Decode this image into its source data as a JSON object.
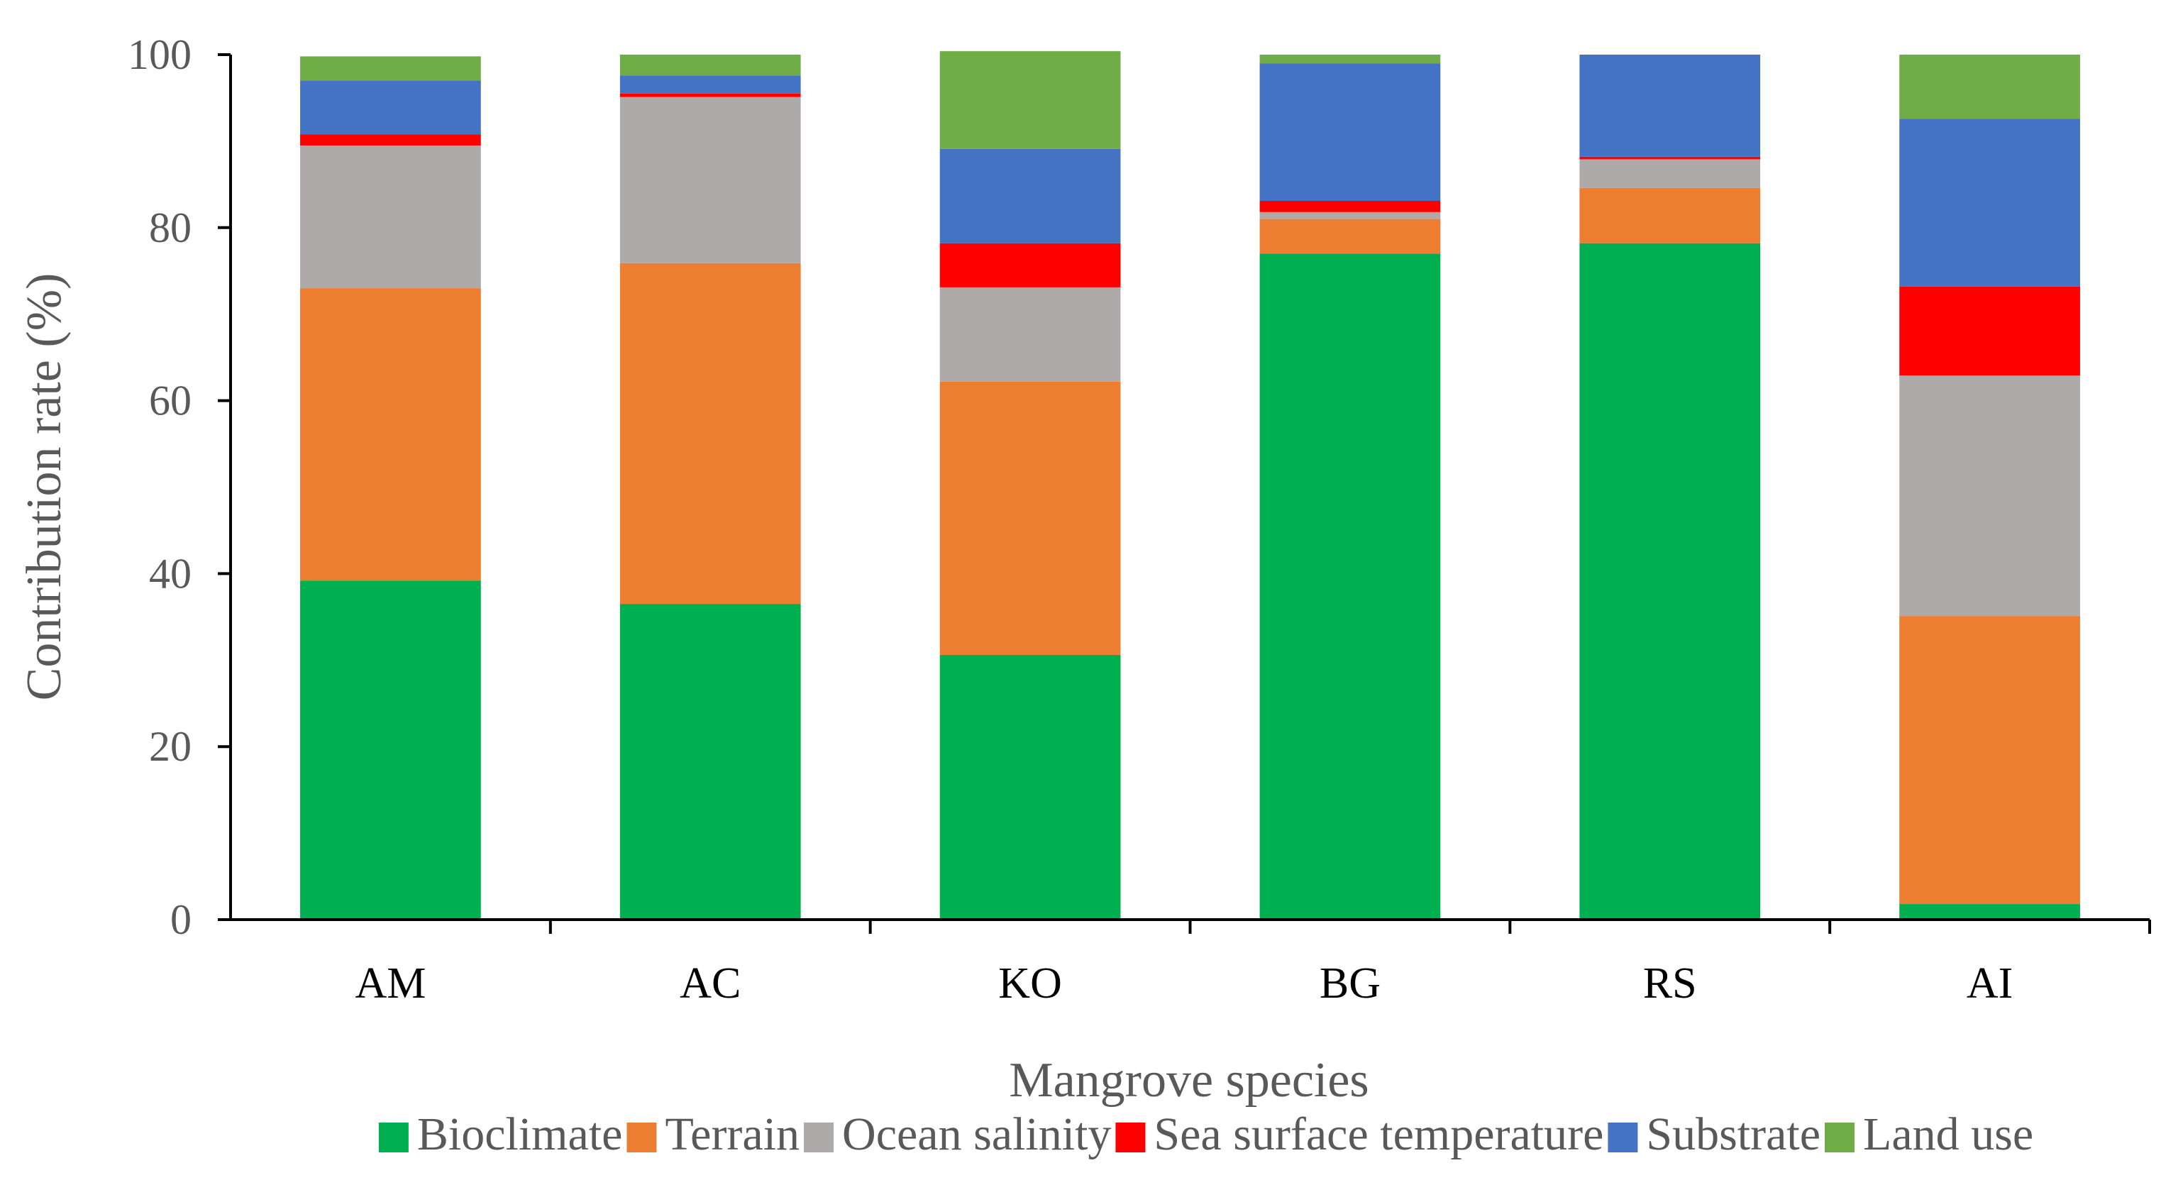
{
  "chart_data": {
    "type": "bar",
    "stacked": true,
    "title": "",
    "xlabel": "Mangrove species",
    "ylabel": "Contribution rate (%)",
    "ylim": [
      0,
      100
    ],
    "yticks": [
      0,
      20,
      40,
      60,
      80,
      100
    ],
    "categories": [
      "AM",
      "AC",
      "KO",
      "BG",
      "RS",
      "AI"
    ],
    "legend_position": "bottom",
    "series": [
      {
        "name": "Bioclimate",
        "color": "#00B050",
        "values": [
          39.2,
          36.5,
          30.6,
          77.0,
          78.2,
          1.8
        ]
      },
      {
        "name": "Terrain",
        "color": "#ED7D31",
        "values": [
          33.8,
          39.4,
          31.6,
          4.0,
          6.4,
          33.3
        ]
      },
      {
        "name": "Ocean salinity",
        "color": "#AEAAAA",
        "values": [
          16.5,
          19.2,
          10.9,
          0.8,
          3.3,
          27.8
        ]
      },
      {
        "name": "Sea surface temperature",
        "color": "#FF0000",
        "values": [
          1.3,
          0.4,
          5.1,
          1.3,
          0.3,
          10.3
        ]
      },
      {
        "name": "Substrate",
        "color": "#4472C4",
        "values": [
          6.2,
          2.1,
          10.9,
          15.9,
          11.8,
          19.4
        ]
      },
      {
        "name": "Land use",
        "color": "#70AD47",
        "values": [
          2.8,
          2.4,
          11.3,
          1.0,
          0.0,
          7.4
        ]
      }
    ]
  }
}
